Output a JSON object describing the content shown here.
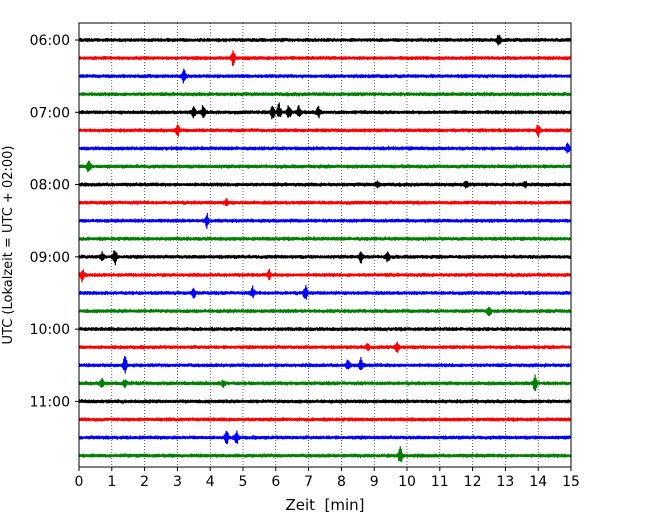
{
  "chart_data": {
    "type": "line",
    "title": "",
    "xlabel": "Zeit  [min]",
    "ylabel": "UTC (Lokalzeit = UTC + 02:00)",
    "xlim": [
      0,
      15
    ],
    "x_ticks": [
      "0",
      "1",
      "2",
      "3",
      "4",
      "5",
      "6",
      "7",
      "8",
      "9",
      "10",
      "11",
      "12",
      "13",
      "14",
      "15"
    ],
    "y_tick_labels": [
      "06:00",
      "07:00",
      "08:00",
      "09:00",
      "10:00",
      "11:00"
    ],
    "y_tick_rows": [
      0,
      4,
      8,
      12,
      16,
      20
    ],
    "row_minutes": 15,
    "grid": "vertical dotted",
    "legend": "none",
    "colors": [
      "#000000",
      "#ff0000",
      "#0000ff",
      "#008000"
    ],
    "series": [
      {
        "start": "06:00",
        "color": "black",
        "events": [
          [
            12.8,
            0.9
          ]
        ]
      },
      {
        "start": "06:15",
        "color": "red",
        "events": [
          [
            4.7,
            1.3
          ]
        ]
      },
      {
        "start": "06:30",
        "color": "blue",
        "events": [
          [
            3.2,
            1.2
          ]
        ]
      },
      {
        "start": "06:45",
        "color": "green",
        "events": []
      },
      {
        "start": "07:00",
        "color": "black",
        "events": [
          [
            3.5,
            1.0
          ],
          [
            3.8,
            1.6
          ],
          [
            5.9,
            1.2
          ],
          [
            6.1,
            1.4
          ],
          [
            6.4,
            1.3
          ],
          [
            6.7,
            1.0
          ],
          [
            7.3,
            1.1
          ]
        ]
      },
      {
        "start": "07:15",
        "color": "red",
        "events": [
          [
            3.0,
            1.1
          ],
          [
            14.0,
            1.2
          ]
        ]
      },
      {
        "start": "07:30",
        "color": "blue",
        "events": [
          [
            14.9,
            0.8
          ]
        ]
      },
      {
        "start": "07:45",
        "color": "green",
        "events": [
          [
            0.3,
            1.1
          ]
        ]
      },
      {
        "start": "08:00",
        "color": "black",
        "events": [
          [
            9.1,
            0.5
          ],
          [
            11.8,
            0.5
          ],
          [
            13.6,
            0.6
          ]
        ]
      },
      {
        "start": "08:15",
        "color": "red",
        "events": [
          [
            4.5,
            0.6
          ]
        ]
      },
      {
        "start": "08:30",
        "color": "blue",
        "events": [
          [
            3.9,
            1.2
          ]
        ]
      },
      {
        "start": "08:45",
        "color": "green",
        "events": []
      },
      {
        "start": "09:00",
        "color": "black",
        "events": [
          [
            0.7,
            0.7
          ],
          [
            1.1,
            1.6
          ],
          [
            8.6,
            0.9
          ],
          [
            9.4,
            1.0
          ]
        ]
      },
      {
        "start": "09:15",
        "color": "red",
        "events": [
          [
            0.1,
            1.1
          ],
          [
            5.8,
            0.7
          ]
        ]
      },
      {
        "start": "09:30",
        "color": "blue",
        "events": [
          [
            3.5,
            0.8
          ],
          [
            5.3,
            1.0
          ],
          [
            6.9,
            1.2
          ]
        ]
      },
      {
        "start": "09:45",
        "color": "green",
        "events": [
          [
            12.5,
            1.0
          ]
        ]
      },
      {
        "start": "10:00",
        "color": "black",
        "events": []
      },
      {
        "start": "10:15",
        "color": "red",
        "events": [
          [
            8.8,
            0.6
          ],
          [
            9.7,
            0.9
          ]
        ]
      },
      {
        "start": "10:30",
        "color": "blue",
        "events": [
          [
            1.4,
            1.5
          ],
          [
            8.2,
            0.9
          ],
          [
            8.6,
            1.2
          ]
        ]
      },
      {
        "start": "10:45",
        "color": "green",
        "events": [
          [
            0.7,
            0.8
          ],
          [
            1.4,
            0.6
          ],
          [
            4.4,
            0.6
          ],
          [
            13.9,
            1.3
          ]
        ]
      },
      {
        "start": "11:00",
        "color": "black",
        "events": []
      },
      {
        "start": "11:15",
        "color": "red",
        "events": []
      },
      {
        "start": "11:30",
        "color": "blue",
        "events": [
          [
            4.5,
            1.1
          ],
          [
            4.8,
            1.2
          ]
        ]
      },
      {
        "start": "11:45",
        "color": "green",
        "events": [
          [
            9.8,
            1.7
          ]
        ]
      }
    ]
  }
}
